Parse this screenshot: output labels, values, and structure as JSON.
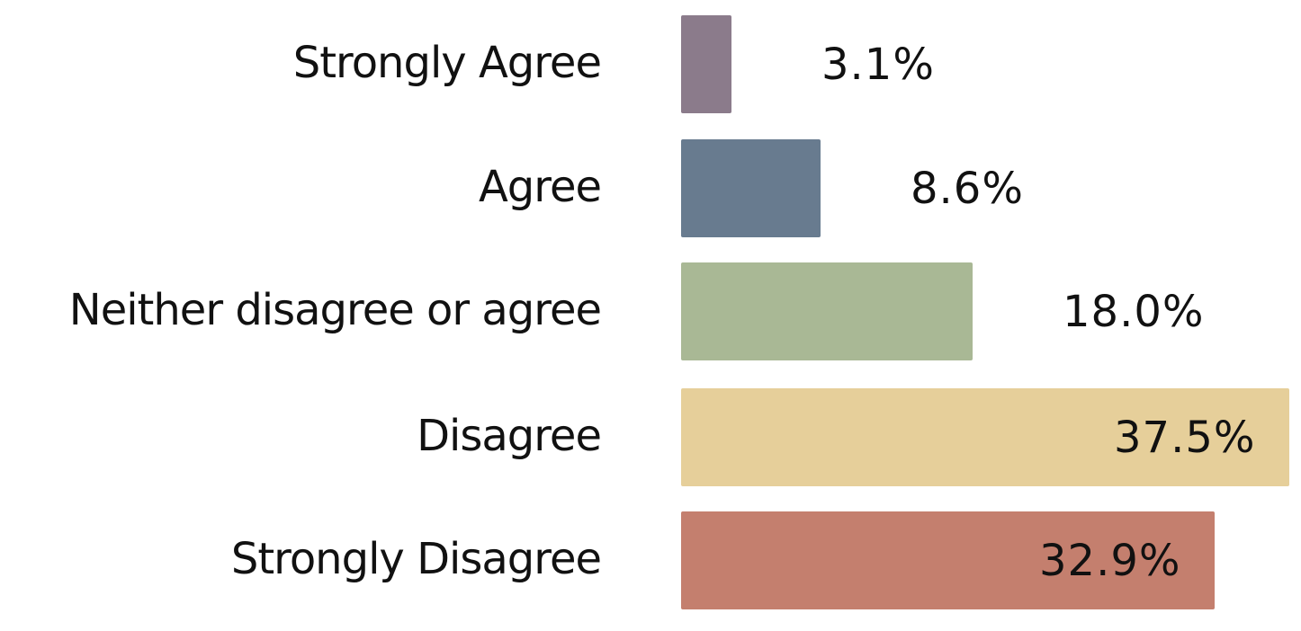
{
  "chart_data": {
    "type": "bar",
    "orientation": "horizontal",
    "categories": [
      "Strongly Agree",
      "Agree",
      "Neither disagree or agree",
      "Disagree",
      "Strongly Disagree"
    ],
    "values": [
      3.1,
      8.6,
      18.0,
      37.5,
      32.9
    ],
    "value_labels": [
      "3.1%",
      "8.6%",
      "18.0%",
      "37.5%",
      "32.9%"
    ],
    "colors": [
      "#8b7b8b",
      "#687b8f",
      "#a9b895",
      "#e6cf9a",
      "#c47f6e"
    ],
    "title": "",
    "xlabel": "",
    "ylabel": "",
    "xlim": [
      0,
      37.5
    ],
    "grid": false,
    "legend": "none"
  }
}
